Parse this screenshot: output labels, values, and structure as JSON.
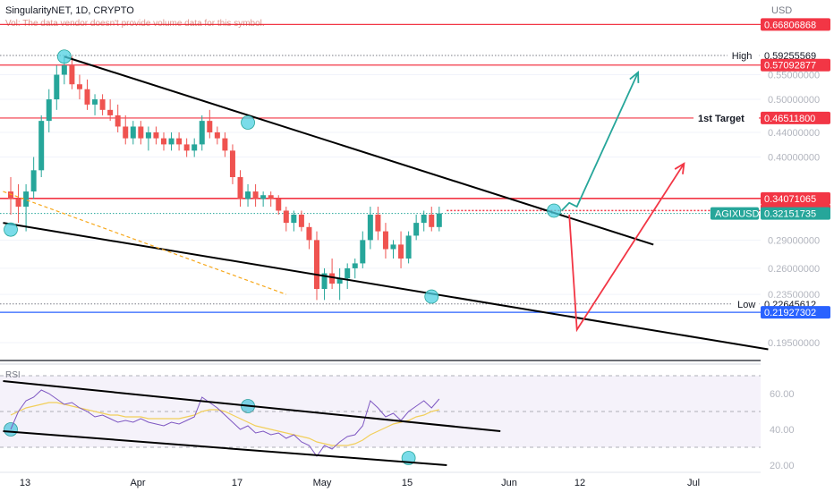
{
  "header": {
    "symbol_line": "SingularityNET, 1D, CRYPTO",
    "volume_note": "Vol: The data vendor doesn't provide volume data for this symbol."
  },
  "currency": "USD",
  "price_axis": {
    "ticks": [
      "0.55000000",
      "0.50000000",
      "0.44000000",
      "0.40000000",
      "0.29000000",
      "0.26000000",
      "0.23500000",
      "0.19500000"
    ]
  },
  "price_tags": [
    {
      "key": "top",
      "label": "",
      "value": "0.66806868",
      "color": "#f23645"
    },
    {
      "key": "high",
      "label": "High",
      "value": "0.59255569",
      "color": "#ffffff"
    },
    {
      "key": "res1",
      "label": "",
      "value": "0.57092877",
      "color": "#f23645"
    },
    {
      "key": "target",
      "label": "1st Target",
      "value": "0.46511800",
      "color": "#f23645"
    },
    {
      "key": "res2",
      "label": "",
      "value": "0.34071065",
      "color": "#f23645"
    },
    {
      "key": "res3",
      "label": "",
      "value": "0.32513635",
      "color": "#f23645"
    },
    {
      "key": "last",
      "label": "AGIXUSD",
      "value": "0.32151735",
      "color": "#26a69a"
    },
    {
      "key": "low",
      "label": "Low",
      "value": "0.22645612",
      "color": "#ffffff"
    },
    {
      "key": "support",
      "label": "",
      "value": "0.21927302",
      "color": "#2962ff"
    }
  ],
  "rsi": {
    "label": "RSI",
    "ticks": [
      "60.00",
      "40.00",
      "20.00"
    ]
  },
  "time_axis": [
    "13",
    "Apr",
    "17",
    "May",
    "15",
    "Jun",
    "12",
    "Jul"
  ],
  "chart_data": {
    "type": "candlestick",
    "symbol": "AGIXUSD",
    "interval": "1D",
    "price_ohlc": [
      [
        0.35,
        0.37,
        0.32,
        0.34
      ],
      [
        0.34,
        0.36,
        0.31,
        0.33
      ],
      [
        0.33,
        0.36,
        0.3,
        0.35
      ],
      [
        0.35,
        0.4,
        0.34,
        0.38
      ],
      [
        0.38,
        0.47,
        0.37,
        0.46
      ],
      [
        0.46,
        0.52,
        0.44,
        0.5
      ],
      [
        0.5,
        0.57,
        0.48,
        0.55
      ],
      [
        0.55,
        0.59,
        0.53,
        0.57
      ],
      [
        0.57,
        0.59,
        0.52,
        0.53
      ],
      [
        0.53,
        0.55,
        0.5,
        0.52
      ],
      [
        0.52,
        0.54,
        0.48,
        0.49
      ],
      [
        0.49,
        0.51,
        0.47,
        0.5
      ],
      [
        0.5,
        0.51,
        0.47,
        0.48
      ],
      [
        0.48,
        0.5,
        0.46,
        0.47
      ],
      [
        0.47,
        0.49,
        0.44,
        0.45
      ],
      [
        0.45,
        0.47,
        0.42,
        0.43
      ],
      [
        0.43,
        0.46,
        0.42,
        0.45
      ],
      [
        0.45,
        0.46,
        0.42,
        0.43
      ],
      [
        0.43,
        0.45,
        0.41,
        0.44
      ],
      [
        0.44,
        0.45,
        0.42,
        0.43
      ],
      [
        0.43,
        0.44,
        0.41,
        0.42
      ],
      [
        0.42,
        0.44,
        0.41,
        0.43
      ],
      [
        0.43,
        0.44,
        0.41,
        0.42
      ],
      [
        0.42,
        0.43,
        0.4,
        0.41
      ],
      [
        0.41,
        0.43,
        0.4,
        0.42
      ],
      [
        0.42,
        0.47,
        0.41,
        0.46
      ],
      [
        0.46,
        0.48,
        0.43,
        0.44
      ],
      [
        0.44,
        0.45,
        0.42,
        0.43
      ],
      [
        0.43,
        0.44,
        0.4,
        0.41
      ],
      [
        0.41,
        0.42,
        0.36,
        0.37
      ],
      [
        0.37,
        0.38,
        0.33,
        0.34
      ],
      [
        0.34,
        0.36,
        0.33,
        0.35
      ],
      [
        0.35,
        0.36,
        0.33,
        0.34
      ],
      [
        0.34,
        0.35,
        0.33,
        0.345
      ],
      [
        0.345,
        0.35,
        0.33,
        0.34
      ],
      [
        0.34,
        0.345,
        0.32,
        0.325
      ],
      [
        0.325,
        0.33,
        0.3,
        0.31
      ],
      [
        0.31,
        0.325,
        0.3,
        0.32
      ],
      [
        0.32,
        0.325,
        0.3,
        0.305
      ],
      [
        0.305,
        0.31,
        0.28,
        0.29
      ],
      [
        0.29,
        0.3,
        0.23,
        0.24
      ],
      [
        0.24,
        0.26,
        0.23,
        0.255
      ],
      [
        0.255,
        0.27,
        0.24,
        0.245
      ],
      [
        0.245,
        0.26,
        0.23,
        0.25
      ],
      [
        0.25,
        0.265,
        0.24,
        0.26
      ],
      [
        0.26,
        0.27,
        0.25,
        0.265
      ],
      [
        0.265,
        0.3,
        0.26,
        0.29
      ],
      [
        0.29,
        0.33,
        0.28,
        0.32
      ],
      [
        0.32,
        0.33,
        0.29,
        0.3
      ],
      [
        0.3,
        0.31,
        0.27,
        0.28
      ],
      [
        0.28,
        0.29,
        0.27,
        0.285
      ],
      [
        0.285,
        0.3,
        0.26,
        0.27
      ],
      [
        0.27,
        0.3,
        0.265,
        0.295
      ],
      [
        0.295,
        0.32,
        0.29,
        0.31
      ],
      [
        0.31,
        0.325,
        0.3,
        0.32
      ],
      [
        0.32,
        0.33,
        0.3,
        0.305
      ],
      [
        0.305,
        0.33,
        0.3,
        0.3215
      ]
    ],
    "rsi_values": [
      40,
      50,
      56,
      58,
      62,
      60,
      57,
      54,
      55,
      52,
      50,
      47,
      48,
      46,
      44,
      45,
      44,
      46,
      44,
      43,
      42,
      44,
      43,
      45,
      47,
      58,
      55,
      52,
      48,
      44,
      40,
      42,
      38,
      39,
      37,
      38,
      35,
      37,
      33,
      31,
      25,
      31,
      29,
      33,
      36,
      37,
      42,
      56,
      52,
      47,
      49,
      45,
      50,
      53,
      56,
      52,
      57
    ],
    "rsi_ma_values": [
      48,
      50,
      52,
      53,
      54,
      55,
      55,
      54,
      53,
      52,
      51,
      50,
      49,
      48,
      48,
      47,
      47,
      47,
      46,
      46,
      46,
      46,
      46,
      47,
      48,
      50,
      51,
      51,
      50,
      48,
      46,
      44,
      42,
      41,
      40,
      39,
      38,
      37,
      36,
      35,
      33,
      32,
      31,
      31,
      31,
      32,
      34,
      37,
      39,
      41,
      43,
      44,
      45,
      47,
      48,
      50,
      51
    ],
    "price_range": [
      0.19,
      0.69
    ],
    "rsi_range": [
      18,
      72
    ],
    "rsi_levels": [
      70,
      50,
      30
    ],
    "horizontal_levels": [
      {
        "value": 0.66806868,
        "color": "#f23645",
        "style": "solid"
      },
      {
        "value": 0.59255569,
        "color": "#787b86",
        "style": "dotted"
      },
      {
        "value": 0.57092877,
        "color": "#f23645",
        "style": "solid"
      },
      {
        "value": 0.465118,
        "color": "#f23645",
        "style": "solid"
      },
      {
        "value": 0.34071065,
        "color": "#f23645",
        "style": "solid"
      },
      {
        "value": 0.32513635,
        "color": "#f23645",
        "style": "dotted"
      },
      {
        "value": 0.32151735,
        "color": "#26a69a",
        "style": "dotted"
      },
      {
        "value": 0.22645612,
        "color": "#787b86",
        "style": "dotted"
      },
      {
        "value": 0.21927302,
        "color": "#2962ff",
        "style": "solid"
      }
    ],
    "trendlines": [
      {
        "name": "upper-channel",
        "from": [
          7,
          0.59
        ],
        "to": [
          84,
          0.285
        ],
        "color": "#000000"
      },
      {
        "name": "lower-channel",
        "from": [
          -1,
          0.31
        ],
        "to": [
          99,
          0.19
        ],
        "color": "#000000"
      },
      {
        "name": "dashed-guide",
        "from": [
          -1,
          0.35
        ],
        "to": [
          36,
          0.235
        ],
        "color": "#f7a81b"
      }
    ],
    "projections": [
      {
        "name": "bullish",
        "color": "#26a69a",
        "points": [
          [
            72,
            0.325
          ],
          [
            73,
            0.335
          ],
          [
            74,
            0.33
          ],
          [
            82,
            0.555
          ]
        ]
      },
      {
        "name": "bearish",
        "color": "#f23645",
        "points": [
          [
            73,
            0.32
          ],
          [
            74,
            0.205
          ],
          [
            88,
            0.39
          ]
        ]
      }
    ],
    "rsi_trendlines": [
      {
        "name": "rsi-upper",
        "from": [
          -1,
          67
        ],
        "to": [
          64,
          39
        ]
      },
      {
        "name": "rsi-lower",
        "from": [
          -1,
          39
        ],
        "to": [
          57,
          20
        ]
      }
    ],
    "markers": [
      {
        "series": "price",
        "x": 0,
        "y": 0.302
      },
      {
        "series": "price",
        "x": 7,
        "y": 0.59
      },
      {
        "series": "price",
        "x": 31,
        "y": 0.457
      },
      {
        "series": "price",
        "x": 55,
        "y": 0.233
      },
      {
        "series": "price",
        "x": 71,
        "y": 0.325
      },
      {
        "series": "rsi",
        "x": 0,
        "y": 40
      },
      {
        "series": "rsi",
        "x": 31,
        "y": 53
      },
      {
        "series": "rsi",
        "x": 52,
        "y": 24
      }
    ]
  }
}
